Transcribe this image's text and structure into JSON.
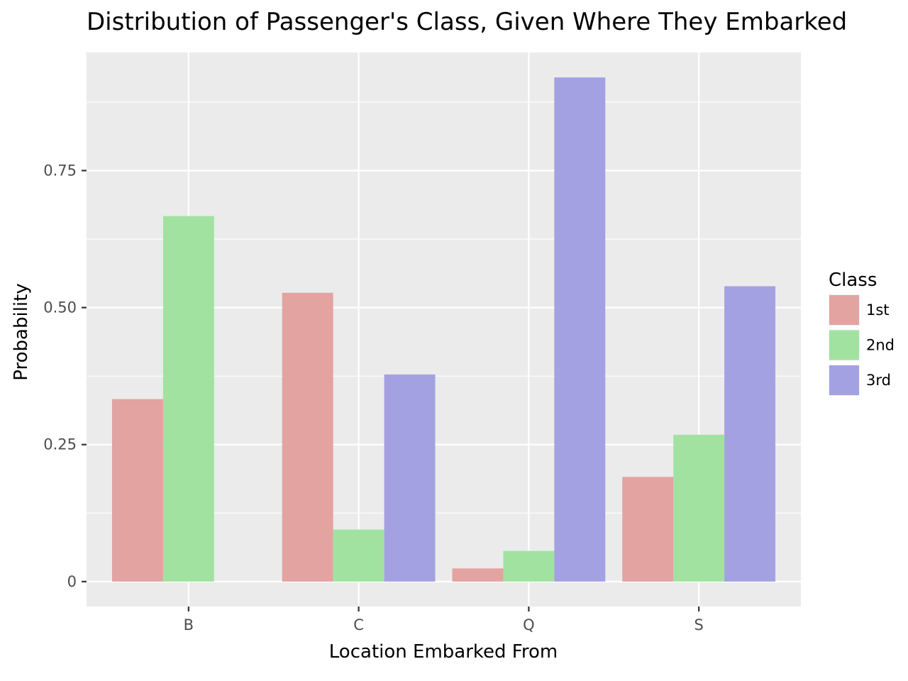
{
  "chart_data": {
    "type": "bar",
    "title": "Distribution of Passenger's Class, Given Where They Embarked",
    "xlabel": "Location Embarked From",
    "ylabel": "Probability",
    "categories": [
      "B",
      "C",
      "Q",
      "S"
    ],
    "series": [
      {
        "name": "1st",
        "values": [
          0.333,
          0.527,
          0.024,
          0.191
        ],
        "color": "#e2a3a1"
      },
      {
        "name": "2nd",
        "values": [
          0.667,
          0.095,
          0.056,
          0.268
        ],
        "color": "#a2e2a1"
      },
      {
        "name": "3rd",
        "values": [
          0.0,
          0.378,
          0.92,
          0.539
        ],
        "color": "#a4a1e2"
      }
    ],
    "ylim": [
      -0.0455,
      0.9655
    ],
    "y_ticks": [
      0,
      0.25,
      0.5,
      0.75
    ],
    "y_tick_labels": [
      "0",
      "0.25",
      "0.50",
      "0.75"
    ],
    "legend_title": "Class",
    "legend_position": "right",
    "grid": true,
    "panel_color": "#ebebeb"
  }
}
